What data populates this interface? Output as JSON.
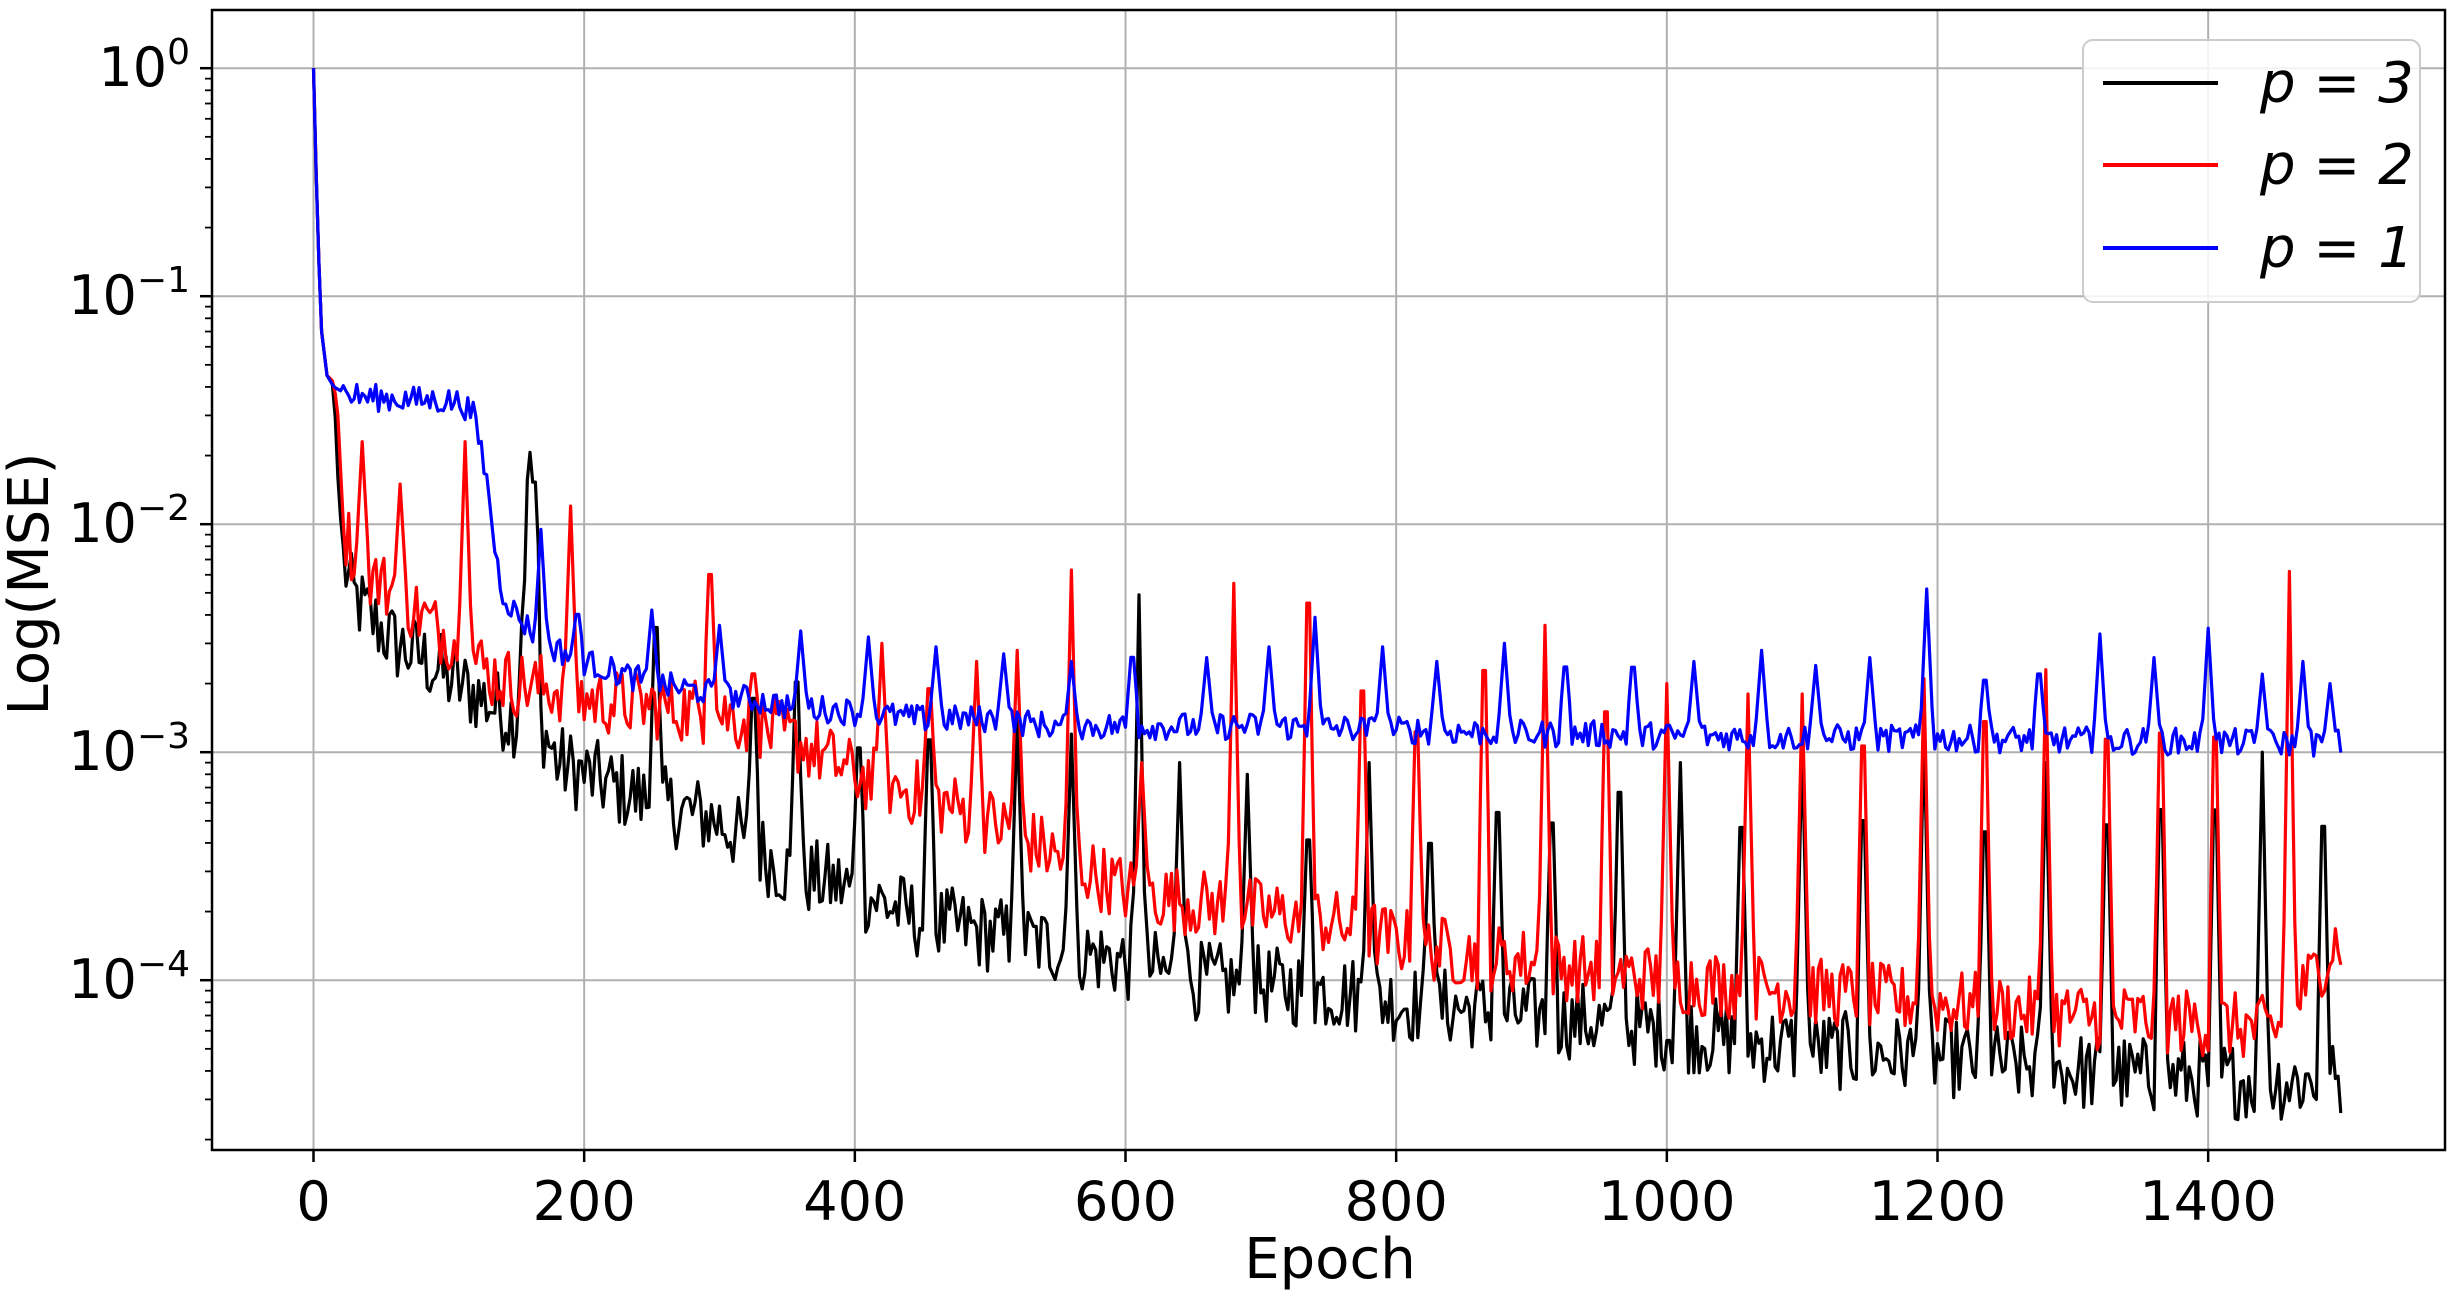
{
  "chart_data": {
    "type": "line",
    "title": "",
    "xlabel": "Epoch",
    "ylabel": "Log(MSE)",
    "xlim": [
      -75,
      1575
    ],
    "ylim": [
      1.8e-05,
      1.8
    ],
    "yscale": "log",
    "grid": true,
    "legend_position": "top-right",
    "x_ticks": [
      0,
      200,
      400,
      600,
      800,
      1000,
      1200,
      1400
    ],
    "x_tick_labels": [
      "0",
      "200",
      "400",
      "600",
      "800",
      "1000",
      "1200",
      "1400"
    ],
    "y_ticks": [
      {
        "value": 1,
        "base": "10",
        "exp": "0"
      },
      {
        "value": 0.1,
        "base": "10",
        "exp": "−1"
      },
      {
        "value": 0.01,
        "base": "10",
        "exp": "−2"
      },
      {
        "value": 0.001,
        "base": "10",
        "exp": "−3"
      },
      {
        "value": 0.0001,
        "base": "10",
        "exp": "−4"
      }
    ],
    "series": [
      {
        "name": "p = 3",
        "color": "#000000",
        "points": [
          [
            0,
            1.0
          ],
          [
            3,
            0.2
          ],
          [
            6,
            0.07
          ],
          [
            10,
            0.045
          ],
          [
            15,
            0.04
          ],
          [
            18,
            0.016
          ],
          [
            22,
            0.007
          ],
          [
            28,
            0.005
          ],
          [
            40,
            0.004
          ],
          [
            60,
            0.003
          ],
          [
            80,
            0.0026
          ],
          [
            100,
            0.0021
          ],
          [
            120,
            0.0018
          ],
          [
            140,
            0.0015
          ],
          [
            150,
            0.0014
          ],
          [
            160,
            0.021
          ],
          [
            165,
            0.0015
          ],
          [
            180,
            0.0009
          ],
          [
            200,
            0.0008
          ],
          [
            250,
            0.0006
          ],
          [
            300,
            0.0005
          ],
          [
            350,
            0.0003
          ],
          [
            400,
            0.00025
          ],
          [
            450,
            0.00018
          ],
          [
            500,
            0.00016
          ],
          [
            550,
            0.00014
          ],
          [
            600,
            0.00012
          ],
          [
            650,
            0.0001
          ],
          [
            700,
            9.5e-05
          ],
          [
            750,
            9e-05
          ],
          [
            800,
            8e-05
          ],
          [
            850,
            7.5e-05
          ],
          [
            900,
            7e-05
          ],
          [
            950,
            6.5e-05
          ],
          [
            1000,
            6e-05
          ],
          [
            1050,
            5.5e-05
          ],
          [
            1100,
            5e-05
          ],
          [
            1150,
            4.8e-05
          ],
          [
            1200,
            4.6e-05
          ],
          [
            1250,
            4.3e-05
          ],
          [
            1300,
            4e-05
          ],
          [
            1350,
            3.8e-05
          ],
          [
            1400,
            3.7e-05
          ],
          [
            1450,
            3.6e-05
          ],
          [
            1495,
            3.6e-05
          ]
        ],
        "spikes": [
          [
            163,
            0.021
          ],
          [
            253,
            0.0055
          ],
          [
            325,
            0.0025
          ],
          [
            357,
            0.0033
          ],
          [
            403,
            0.0015
          ],
          [
            455,
            0.0018
          ],
          [
            520,
            0.0014
          ],
          [
            560,
            0.0012
          ],
          [
            610,
            0.0049
          ],
          [
            640,
            0.0009
          ],
          [
            690,
            0.0008
          ],
          [
            735,
            0.0006
          ],
          [
            780,
            0.0009
          ],
          [
            825,
            0.0006
          ],
          [
            875,
            0.0009
          ],
          [
            915,
            0.0008
          ],
          [
            965,
            0.0012
          ],
          [
            1010,
            0.0009
          ],
          [
            1055,
            0.0008
          ],
          [
            1100,
            0.0011
          ],
          [
            1145,
            0.0009
          ],
          [
            1190,
            0.0013
          ],
          [
            1235,
            0.0008
          ],
          [
            1280,
            0.0009
          ],
          [
            1325,
            0.0009
          ],
          [
            1365,
            0.0011
          ],
          [
            1405,
            0.0011
          ],
          [
            1440,
            0.001
          ],
          [
            1485,
            0.0009
          ]
        ],
        "noise": 0.35
      },
      {
        "name": "p = 2",
        "color": "#ff0000",
        "points": [
          [
            0,
            1.0
          ],
          [
            3,
            0.2
          ],
          [
            6,
            0.07
          ],
          [
            10,
            0.045
          ],
          [
            15,
            0.042
          ],
          [
            18,
            0.03
          ],
          [
            22,
            0.01
          ],
          [
            30,
            0.007
          ],
          [
            50,
            0.0055
          ],
          [
            70,
            0.0045
          ],
          [
            90,
            0.0035
          ],
          [
            110,
            0.003
          ],
          [
            130,
            0.0022
          ],
          [
            150,
            0.002
          ],
          [
            180,
            0.0019
          ],
          [
            200,
            0.0017
          ],
          [
            250,
            0.0016
          ],
          [
            300,
            0.0015
          ],
          [
            330,
            0.0013
          ],
          [
            360,
            0.0011
          ],
          [
            400,
            0.0008
          ],
          [
            450,
            0.00065
          ],
          [
            500,
            0.0005
          ],
          [
            550,
            0.00035
          ],
          [
            600,
            0.00025
          ],
          [
            650,
            0.00022
          ],
          [
            700,
            0.0002
          ],
          [
            750,
            0.00018
          ],
          [
            800,
            0.00015
          ],
          [
            850,
            0.00013
          ],
          [
            900,
            0.00012
          ],
          [
            950,
            0.00011
          ],
          [
            1000,
            0.0001
          ],
          [
            1050,
            9.5e-05
          ],
          [
            1100,
            9e-05
          ],
          [
            1150,
            8.5e-05
          ],
          [
            1200,
            8e-05
          ],
          [
            1250,
            7.5e-05
          ],
          [
            1300,
            7e-05
          ],
          [
            1350,
            6.8e-05
          ],
          [
            1400,
            6.5e-05
          ],
          [
            1450,
            6e-05
          ],
          [
            1495,
            0.00015
          ]
        ],
        "spikes": [
          [
            36,
            0.023
          ],
          [
            64,
            0.015
          ],
          [
            112,
            0.023
          ],
          [
            190,
            0.012
          ],
          [
            293,
            0.0085
          ],
          [
            325,
            0.0025
          ],
          [
            420,
            0.003
          ],
          [
            455,
            0.0025
          ],
          [
            490,
            0.0025
          ],
          [
            520,
            0.0028
          ],
          [
            560,
            0.0063
          ],
          [
            612,
            0.0009
          ],
          [
            680,
            0.0055
          ],
          [
            735,
            0.01
          ],
          [
            775,
            0.0034
          ],
          [
            815,
            0.0021
          ],
          [
            865,
            0.0047
          ],
          [
            910,
            0.0036
          ],
          [
            955,
            0.0029
          ],
          [
            1000,
            0.002
          ],
          [
            1060,
            0.0018
          ],
          [
            1100,
            0.0018
          ],
          [
            1145,
            0.002
          ],
          [
            1190,
            0.0021
          ],
          [
            1235,
            0.0028
          ],
          [
            1280,
            0.0023
          ],
          [
            1325,
            0.0023
          ],
          [
            1365,
            0.0025
          ],
          [
            1405,
            0.0024
          ],
          [
            1460,
            0.0062
          ]
        ],
        "noise": 0.3
      },
      {
        "name": "p = 1",
        "color": "#0000ff",
        "points": [
          [
            0,
            1.0
          ],
          [
            3,
            0.2
          ],
          [
            6,
            0.07
          ],
          [
            10,
            0.045
          ],
          [
            15,
            0.04
          ],
          [
            25,
            0.037
          ],
          [
            40,
            0.036
          ],
          [
            60,
            0.0355
          ],
          [
            80,
            0.035
          ],
          [
            100,
            0.0348
          ],
          [
            110,
            0.034
          ],
          [
            118,
            0.03
          ],
          [
            125,
            0.02
          ],
          [
            130,
            0.013
          ],
          [
            135,
            0.007
          ],
          [
            140,
            0.005
          ],
          [
            150,
            0.004
          ],
          [
            170,
            0.003
          ],
          [
            200,
            0.0025
          ],
          [
            250,
            0.002
          ],
          [
            300,
            0.0018
          ],
          [
            350,
            0.0016
          ],
          [
            400,
            0.0015
          ],
          [
            450,
            0.0014
          ],
          [
            500,
            0.0014
          ],
          [
            550,
            0.0013
          ],
          [
            600,
            0.0013
          ],
          [
            650,
            0.0013
          ],
          [
            700,
            0.0013
          ],
          [
            750,
            0.00128
          ],
          [
            800,
            0.00125
          ],
          [
            850,
            0.00123
          ],
          [
            900,
            0.0012
          ],
          [
            950,
            0.0012
          ],
          [
            1000,
            0.00118
          ],
          [
            1050,
            0.00117
          ],
          [
            1100,
            0.00116
          ],
          [
            1150,
            0.00115
          ],
          [
            1200,
            0.00115
          ],
          [
            1250,
            0.00114
          ],
          [
            1300,
            0.00113
          ],
          [
            1350,
            0.00112
          ],
          [
            1400,
            0.00111
          ],
          [
            1450,
            0.0011
          ],
          [
            1495,
            0.0011
          ]
        ],
        "spikes": [
          [
            168,
            0.0095
          ],
          [
            195,
            0.0045
          ],
          [
            250,
            0.0042
          ],
          [
            300,
            0.0036
          ],
          [
            360,
            0.0034
          ],
          [
            410,
            0.0032
          ],
          [
            460,
            0.0029
          ],
          [
            510,
            0.0027
          ],
          [
            560,
            0.0025
          ],
          [
            605,
            0.0031
          ],
          [
            660,
            0.0026
          ],
          [
            706,
            0.0029
          ],
          [
            740,
            0.0039
          ],
          [
            790,
            0.0029
          ],
          [
            830,
            0.0025
          ],
          [
            880,
            0.003
          ],
          [
            925,
            0.0028
          ],
          [
            975,
            0.0028
          ],
          [
            1020,
            0.0025
          ],
          [
            1070,
            0.0028
          ],
          [
            1110,
            0.0024
          ],
          [
            1150,
            0.0026
          ],
          [
            1192,
            0.0052
          ],
          [
            1235,
            0.0024
          ],
          [
            1275,
            0.0026
          ],
          [
            1320,
            0.0033
          ],
          [
            1360,
            0.0026
          ],
          [
            1400,
            0.0035
          ],
          [
            1440,
            0.0022
          ],
          [
            1470,
            0.0025
          ],
          [
            1490,
            0.002
          ]
        ],
        "noise": 0.12
      }
    ]
  }
}
